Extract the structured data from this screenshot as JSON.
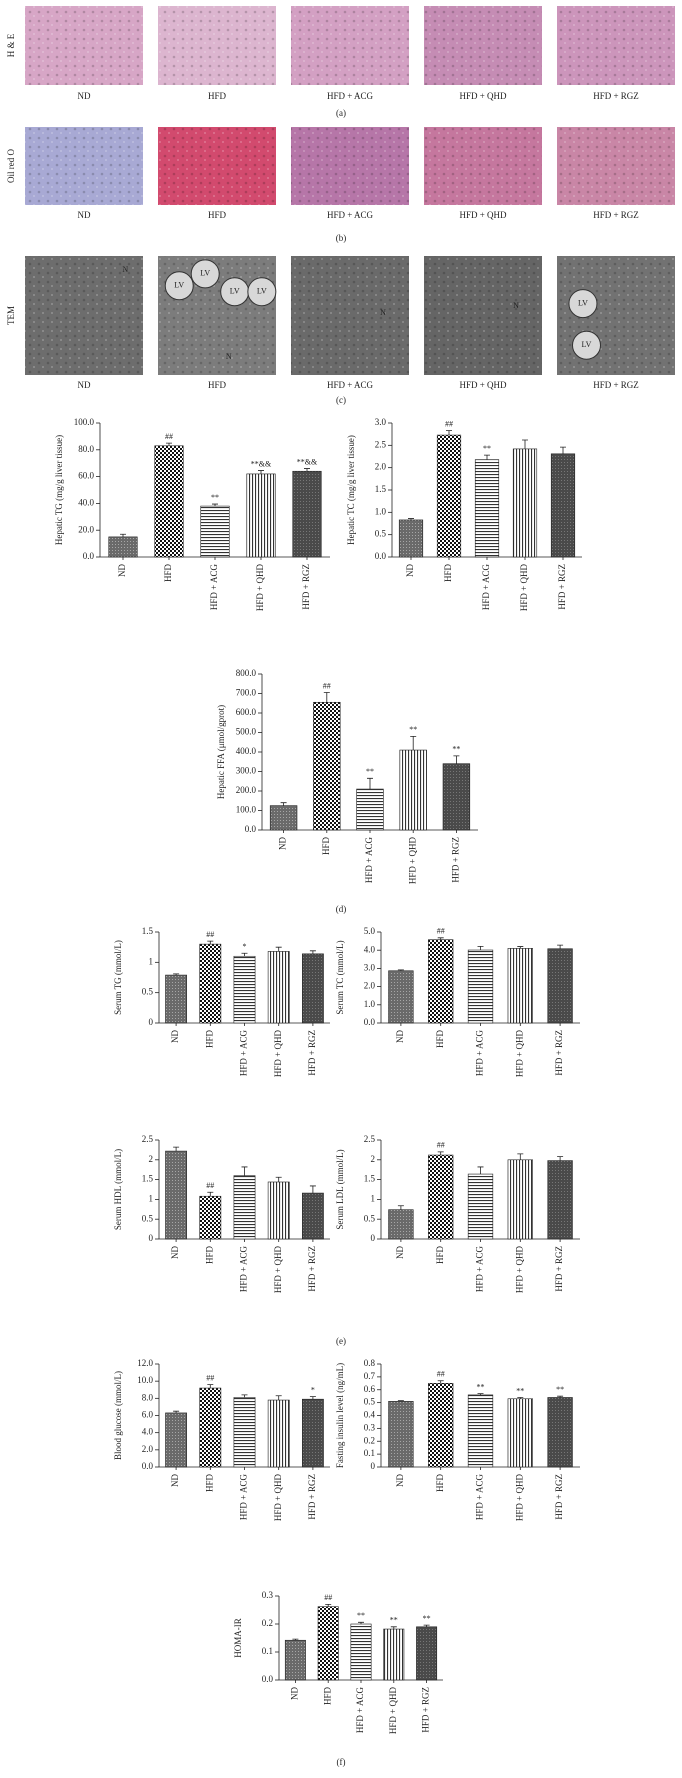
{
  "image_panels": [
    {
      "row_label": "H & E",
      "captions": [
        "ND",
        "HFD",
        "HFD + ACG",
        "HFD + QHD",
        "HFD + RGZ"
      ],
      "panel_label": "(a)"
    },
    {
      "row_label": "Oil red O",
      "captions": [
        "ND",
        "HFD",
        "HFD + ACG",
        "HFD + QHD",
        "HFD + RGZ"
      ],
      "panel_label": "(b)"
    },
    {
      "row_label": "TEM",
      "captions": [
        "ND",
        "HFD",
        "HFD + ACG",
        "HFD + QHD",
        "HFD + RGZ"
      ],
      "panel_label": "(c)",
      "annotations": [
        [
          "N"
        ],
        [
          "LV",
          "LV",
          "LV",
          "LV",
          "N"
        ],
        [
          "N"
        ],
        [
          "N"
        ],
        [
          "LV",
          "LV"
        ]
      ]
    }
  ],
  "panel_labels": [
    "(d)",
    "(e)",
    "(f)"
  ],
  "chart_data": [
    {
      "type": "bar",
      "ylabel": "Hepatic TG (mg/g liver tissue)",
      "categories": [
        "ND",
        "HFD",
        "HFD + ACG",
        "HFD + QHD",
        "HFD + RGZ"
      ],
      "values": [
        15,
        83,
        38,
        62,
        64
      ],
      "errors": [
        2,
        2,
        1.5,
        2.5,
        2
      ],
      "markers": [
        null,
        "##",
        "**",
        "**&&",
        "**&&"
      ],
      "ylim": [
        0,
        100
      ],
      "yticks": [
        {
          "value": 0,
          "label": "0.0"
        },
        {
          "value": 20,
          "label": "20.0"
        },
        {
          "value": 40,
          "label": "40.0"
        },
        {
          "value": 60,
          "label": "60.0"
        },
        {
          "value": 80,
          "label": "80.0"
        },
        {
          "value": 100,
          "label": "100.0"
        }
      ]
    },
    {
      "type": "bar",
      "ylabel": "Hepatic TC (mg/g liver tissue)",
      "categories": [
        "ND",
        "HFD",
        "HFD + ACG",
        "HFD + QHD",
        "HFD + RGZ"
      ],
      "values": [
        0.83,
        2.73,
        2.18,
        2.42,
        2.31
      ],
      "errors": [
        0.03,
        0.1,
        0.1,
        0.2,
        0.15
      ],
      "markers": [
        null,
        "##",
        "**",
        null,
        null
      ],
      "ylim": [
        0,
        3
      ],
      "yticks": [
        {
          "value": 0,
          "label": "0.0"
        },
        0.5,
        {
          "value": 1,
          "label": "1.0"
        },
        1.5,
        {
          "value": 2,
          "label": "2.0"
        },
        2.5,
        {
          "value": 3,
          "label": "3.0"
        }
      ]
    },
    {
      "type": "bar",
      "ylabel": "Hepatic FFA (μmol/gprot)",
      "categories": [
        "ND",
        "HFD",
        "HFD + ACG",
        "HFD + QHD",
        "HFD + RGZ"
      ],
      "values": [
        125,
        655,
        210,
        410,
        340
      ],
      "errors": [
        15,
        50,
        55,
        70,
        40
      ],
      "markers": [
        null,
        "##",
        "**",
        "**",
        "**"
      ],
      "ylim": [
        0,
        800
      ],
      "yticks": [
        {
          "value": 0,
          "label": "0.0"
        },
        {
          "value": 100,
          "label": "100.0"
        },
        {
          "value": 200,
          "label": "200.0"
        },
        {
          "value": 300,
          "label": "300.0"
        },
        {
          "value": 400,
          "label": "400.0"
        },
        {
          "value": 500,
          "label": "500.0"
        },
        {
          "value": 600,
          "label": "600.0"
        },
        {
          "value": 700,
          "label": "700.0"
        },
        {
          "value": 800,
          "label": "800.0"
        }
      ]
    },
    {
      "type": "bar",
      "ylabel": "Serum TG (mmol/L)",
      "categories": [
        "ND",
        "HFD",
        "HFD + ACG",
        "HFD + QHD",
        "HFD + RGZ"
      ],
      "values": [
        0.79,
        1.3,
        1.1,
        1.18,
        1.14
      ],
      "errors": [
        0.02,
        0.05,
        0.05,
        0.07,
        0.05
      ],
      "markers": [
        null,
        "##",
        "*",
        null,
        null
      ],
      "ylim": [
        0,
        1.5
      ],
      "yticks": [
        0,
        0.5,
        1,
        1.5
      ]
    },
    {
      "type": "bar",
      "ylabel": "Serum TC (mmol/L)",
      "categories": [
        "ND",
        "HFD",
        "HFD + ACG",
        "HFD + QHD",
        "HFD + RGZ"
      ],
      "values": [
        2.87,
        4.58,
        4.01,
        4.1,
        4.08
      ],
      "errors": [
        0.05,
        0.1,
        0.2,
        0.1,
        0.2
      ],
      "markers": [
        null,
        "##",
        null,
        null,
        null
      ],
      "ylim": [
        0,
        5
      ],
      "yticks": [
        {
          "value": 0,
          "label": "0.0"
        },
        {
          "value": 1,
          "label": "1.0"
        },
        {
          "value": 2,
          "label": "2.0"
        },
        {
          "value": 3,
          "label": "3.0"
        },
        {
          "value": 4,
          "label": "4.0"
        },
        {
          "value": 5,
          "label": "5.0"
        }
      ]
    },
    {
      "type": "bar",
      "ylabel": "Serum HDL (mmol/L)",
      "categories": [
        "ND",
        "HFD",
        "HFD + ACG",
        "HFD + QHD",
        "HFD + RGZ"
      ],
      "values": [
        2.22,
        1.08,
        1.6,
        1.44,
        1.16
      ],
      "errors": [
        0.1,
        0.1,
        0.22,
        0.12,
        0.18
      ],
      "markers": [
        null,
        "##",
        null,
        null,
        null
      ],
      "ylim": [
        0,
        2.5
      ],
      "yticks": [
        0,
        0.5,
        1,
        1.5,
        2,
        2.5
      ]
    },
    {
      "type": "bar",
      "ylabel": "Serum LDL (mmol/L)",
      "categories": [
        "ND",
        "HFD",
        "HFD + ACG",
        "HFD + QHD",
        "HFD + RGZ"
      ],
      "values": [
        0.74,
        2.12,
        1.64,
        2,
        1.98
      ],
      "errors": [
        0.1,
        0.08,
        0.18,
        0.15,
        0.1
      ],
      "markers": [
        null,
        "##",
        null,
        null,
        null
      ],
      "ylim": [
        0,
        2.5
      ],
      "yticks": [
        0,
        0.5,
        1,
        1.5,
        2,
        2.5
      ]
    },
    {
      "type": "bar",
      "ylabel": "Blood glucose (mmol/L)",
      "categories": [
        "ND",
        "HFD",
        "HFD + ACG",
        "HFD + QHD",
        "HFD + RGZ"
      ],
      "values": [
        6.3,
        9.2,
        8.1,
        7.8,
        7.9
      ],
      "errors": [
        0.2,
        0.4,
        0.3,
        0.5,
        0.3
      ],
      "markers": [
        null,
        "##",
        null,
        null,
        "*"
      ],
      "ylim": [
        0,
        12
      ],
      "yticks": [
        {
          "value": 0,
          "label": "0.0"
        },
        {
          "value": 2,
          "label": "2.0"
        },
        {
          "value": 4,
          "label": "4.0"
        },
        {
          "value": 6,
          "label": "6.0"
        },
        {
          "value": 8,
          "label": "8.0"
        },
        {
          "value": 10,
          "label": "10.0"
        },
        {
          "value": 12,
          "label": "12.0"
        }
      ]
    },
    {
      "type": "bar",
      "ylabel": "Fasting insulin level (ng/mL)",
      "categories": [
        "ND",
        "HFD",
        "HFD + ACG",
        "HFD + QHD",
        "HFD + RGZ"
      ],
      "values": [
        0.51,
        0.65,
        0.56,
        0.53,
        0.54
      ],
      "errors": [
        0.005,
        0.02,
        0.01,
        0.01,
        0.01
      ],
      "markers": [
        null,
        "##",
        "**",
        "**",
        "**"
      ],
      "ylim": [
        0,
        0.8
      ],
      "yticks": [
        0,
        0.1,
        0.2,
        0.3,
        0.4,
        0.5,
        0.6,
        0.7,
        0.8
      ]
    },
    {
      "type": "bar",
      "ylabel": "HOMA-IR",
      "categories": [
        "ND",
        "HFD",
        "HFD + ACG",
        "HFD + QHD",
        "HFD + RGZ"
      ],
      "values": [
        0.142,
        0.262,
        0.2,
        0.182,
        0.19
      ],
      "errors": [
        0.004,
        0.008,
        0.006,
        0.008,
        0.006
      ],
      "markers": [
        null,
        "##",
        "**",
        "**",
        "**"
      ],
      "ylim": [
        0,
        0.3
      ],
      "yticks": [
        {
          "value": 0,
          "label": "0.0"
        },
        0.1,
        0.2,
        0.3
      ]
    }
  ]
}
